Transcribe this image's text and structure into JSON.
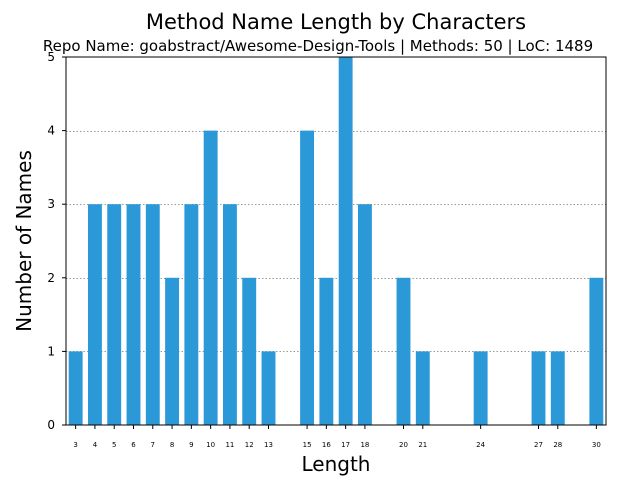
{
  "chart_data": {
    "type": "bar",
    "title": "Method Name Length by Characters",
    "subtitle": "Repo Name: goabstract/Awesome-Design-Tools | Methods: 50 | LoC: 1489",
    "xlabel": "Length",
    "ylabel": "Number of Names",
    "categories": [
      "3",
      "4",
      "5",
      "6",
      "7",
      "8",
      "9",
      "10",
      "11",
      "12",
      "13",
      "15",
      "16",
      "17",
      "18",
      "20",
      "21",
      "24",
      "27",
      "28",
      "30"
    ],
    "x": [
      3,
      4,
      5,
      6,
      7,
      8,
      9,
      10,
      11,
      12,
      13,
      15,
      16,
      17,
      18,
      20,
      21,
      24,
      27,
      28,
      30
    ],
    "values": [
      1,
      3,
      3,
      3,
      3,
      2,
      3,
      4,
      3,
      2,
      1,
      4,
      2,
      5,
      3,
      2,
      1,
      1,
      1,
      1,
      2
    ],
    "xlim": [
      2.5,
      30.5
    ],
    "ylim": [
      0,
      5
    ],
    "y_ticks": [
      0,
      1,
      2,
      3,
      4,
      5
    ],
    "grid": "horizontal dotted",
    "bar_color": "#2b98d8",
    "grid_color": "#999999"
  }
}
